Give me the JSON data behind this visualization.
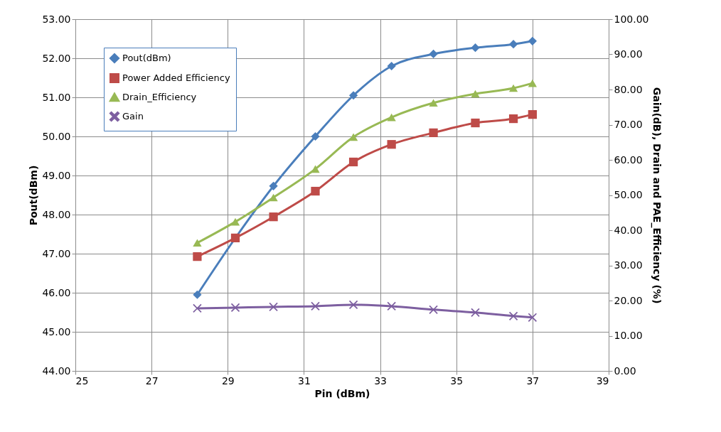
{
  "chart_data": {
    "type": "line",
    "xlabel": "Pin (dBm)",
    "ylabel": "Pout(dBm)",
    "y2label": "Gain(dB),  Drain and PAE_Efficiency  (%)",
    "x": [
      28.2,
      29.2,
      30.2,
      31.3,
      32.3,
      33.3,
      34.4,
      35.5,
      36.5,
      37.0
    ],
    "series": [
      {
        "name": "Pout(dBm)",
        "color": "#4a7ebb",
        "marker": "diamond",
        "axis": "y",
        "values": [
          45.95,
          47.4,
          48.73,
          50.0,
          51.05,
          51.8,
          52.11,
          52.27,
          52.36,
          52.44
        ]
      },
      {
        "name": "Power Added Efficiency",
        "color": "#be4b48",
        "marker": "square",
        "axis": "y2",
        "values": [
          32.5,
          37.8,
          43.8,
          51.1,
          59.4,
          64.4,
          67.7,
          70.5,
          71.7,
          72.9
        ]
      },
      {
        "name": "Drain_Efficiency",
        "color": "#98b954",
        "marker": "triangle",
        "axis": "y2",
        "values": [
          36.4,
          42.4,
          49.3,
          57.4,
          66.5,
          72.1,
          76.2,
          78.8,
          80.4,
          81.8
        ]
      },
      {
        "name": "Gain",
        "color": "#7d5fa0",
        "marker": "cross",
        "axis": "y2",
        "values": [
          17.8,
          18.0,
          18.2,
          18.4,
          18.8,
          18.4,
          17.4,
          16.6,
          15.6,
          15.2
        ]
      }
    ],
    "xlim": [
      25,
      39
    ],
    "xticks": [
      25,
      27,
      29,
      31,
      33,
      35,
      37,
      39
    ],
    "ylim": [
      44,
      53
    ],
    "yticks": [
      {
        "value": 44,
        "label": "44.00"
      },
      {
        "value": 45,
        "label": "45.00"
      },
      {
        "value": 46,
        "label": "46.00"
      },
      {
        "value": 47,
        "label": "47.00"
      },
      {
        "value": 48,
        "label": "48.00"
      },
      {
        "value": 49,
        "label": "49.00"
      },
      {
        "value": 50,
        "label": "50.00"
      },
      {
        "value": 51,
        "label": "51.00"
      },
      {
        "value": 52,
        "label": "52.00"
      },
      {
        "value": 53,
        "label": "53.00"
      }
    ],
    "y2lim": [
      0,
      100
    ],
    "y2ticks": [
      {
        "value": 0,
        "label": "0.00"
      },
      {
        "value": 10,
        "label": "10.00"
      },
      {
        "value": 20,
        "label": "20.00"
      },
      {
        "value": 30,
        "label": "30.00"
      },
      {
        "value": 40,
        "label": "40.00"
      },
      {
        "value": 50,
        "label": "50.00"
      },
      {
        "value": 60,
        "label": "60.00"
      },
      {
        "value": 70,
        "label": "70.00"
      },
      {
        "value": 80,
        "label": "80.00"
      },
      {
        "value": 90,
        "label": "90.00"
      },
      {
        "value": 100,
        "label": "100.00"
      }
    ],
    "grid": true,
    "legend": "top left",
    "line_style": "solid"
  }
}
